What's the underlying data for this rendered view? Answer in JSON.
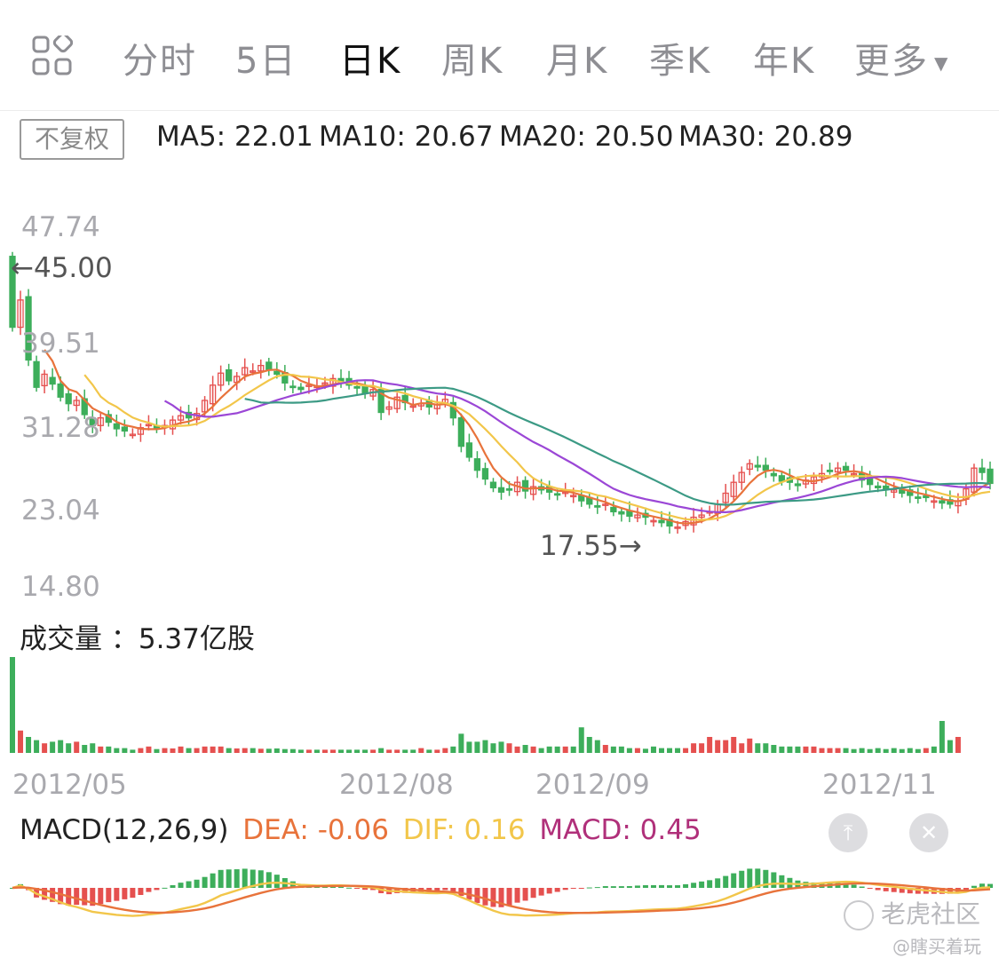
{
  "tabs": [
    {
      "label": "分时",
      "active": false
    },
    {
      "label": "5日",
      "active": false
    },
    {
      "label": "日K",
      "active": true
    },
    {
      "label": "周K",
      "active": false
    },
    {
      "label": "月K",
      "active": false
    },
    {
      "label": "季K",
      "active": false
    },
    {
      "label": "年K",
      "active": false
    },
    {
      "label": "更多",
      "active": false
    }
  ],
  "adjust_label": "不复权",
  "ma_legend": [
    {
      "text": "MA5: 22.01",
      "color": "#e8733b"
    },
    {
      "text": "MA10: 20.67",
      "color": "#f2c64a"
    },
    {
      "text": "MA20: 20.50",
      "color": "#9b47d6"
    },
    {
      "text": "MA30: 20.89",
      "color": "#3c9a85"
    }
  ],
  "price_axis": [
    "47.74",
    "39.51",
    "31.28",
    "23.04",
    "14.80"
  ],
  "high_marker": "45.00",
  "low_marker": "17.55",
  "volume_title": "成交量 ：5.37亿股",
  "dates": [
    "2012/05",
    "2012/08",
    "2012/09",
    "2012/11"
  ],
  "macd_legend": [
    {
      "text": "MACD(12,26,9)",
      "color": "#222222"
    },
    {
      "text": "DEA: -0.06",
      "color": "#e8733b"
    },
    {
      "text": "DIF: 0.16",
      "color": "#f2c64a"
    },
    {
      "text": "MACD: 0.45",
      "color": "#b0307a"
    }
  ],
  "watermark": {
    "brand": "老虎社区",
    "user": "@瞎买着玩"
  },
  "colors": {
    "up": "#e5504f",
    "down": "#3dae5b",
    "ma5": "#e8733b",
    "ma10": "#f2c64a",
    "ma20": "#9b47d6",
    "ma30": "#3c9a85"
  },
  "chart_data": {
    "type": "candlestick",
    "price_range": [
      14.8,
      47.74
    ],
    "ma_periods": [
      5,
      10,
      20,
      30
    ],
    "close_shape": [
      38.5,
      41.0,
      35.5,
      33.0,
      34.2,
      33.3,
      32.1,
      31.5,
      31.8,
      30.5,
      29.5,
      30.2,
      29.8,
      29.2,
      29.0,
      28.7,
      29.3,
      29.6,
      29.2,
      29.5,
      30.0,
      30.4,
      30.2,
      30.6,
      31.8,
      33.2,
      34.3,
      33.6,
      34.0,
      34.8,
      34.5,
      35.0,
      34.6,
      34.2,
      33.4,
      33.0,
      32.8,
      33.2,
      33.1,
      33.4,
      33.8,
      33.5,
      33.2,
      33.0,
      32.5,
      32.8,
      30.7,
      31.2,
      32.1,
      31.6,
      31.3,
      31.5,
      31.2,
      31.4,
      31.9,
      30.2,
      27.6,
      26.6,
      25.4,
      24.6,
      23.8,
      23.4,
      23.6,
      24.3,
      23.5,
      23.9,
      23.6,
      23.4,
      23.2,
      23.4,
      23.1,
      22.6,
      22.3,
      22.1,
      22.3,
      21.6,
      21.4,
      21.2,
      21.3,
      21.1,
      20.8,
      20.6,
      20.3,
      20.2,
      20.7,
      21.1,
      21.3,
      21.6,
      22.3,
      23.3,
      24.3,
      25.2,
      26.0,
      25.7,
      25.4,
      24.9,
      24.4,
      24.3,
      24.0,
      24.5,
      24.8,
      25.1,
      25.4,
      25.6,
      25.4,
      25.1,
      24.5,
      24.1,
      23.8,
      23.7,
      23.6,
      23.3,
      23.1,
      22.9,
      22.9,
      22.6,
      22.4,
      22.3,
      22.6,
      23.7,
      25.6,
      25.2,
      24.2
    ],
    "volume_shape": [
      30,
      7,
      5,
      4,
      3,
      3.5,
      4,
      3,
      3.5,
      2.5,
      3,
      2,
      2,
      1.5,
      1.5,
      1,
      1.5,
      2,
      1.2,
      1.5,
      1.4,
      2,
      1.5,
      1.5,
      2,
      2,
      2,
      1.5,
      1.4,
      1.5,
      1.5,
      1.3,
      1.3,
      1.4,
      1.2,
      1.2,
      1,
      1,
      1,
      1,
      1,
      1,
      1,
      1,
      1,
      1,
      1.5,
      1,
      1,
      1,
      1,
      1.5,
      1,
      1,
      1.5,
      2,
      6,
      3.5,
      3.5,
      4,
      3,
      3.5,
      3,
      2,
      2.5,
      2,
      1.5,
      2,
      2,
      2,
      2,
      8,
      5,
      4,
      2.5,
      2,
      2,
      1.5,
      1.5,
      1.3,
      2,
      1.5,
      1.5,
      1.5,
      1.5,
      3,
      3,
      5,
      4,
      4,
      5,
      3,
      4.5,
      3,
      3,
      2.5,
      2,
      2,
      2,
      2,
      2,
      1.5,
      1.5,
      1.5,
      1.5,
      1.2,
      1.5,
      1.2,
      1.5,
      1.2,
      1.5,
      1.2,
      1.5,
      1.2,
      1.5,
      2,
      10,
      4,
      5
    ]
  }
}
